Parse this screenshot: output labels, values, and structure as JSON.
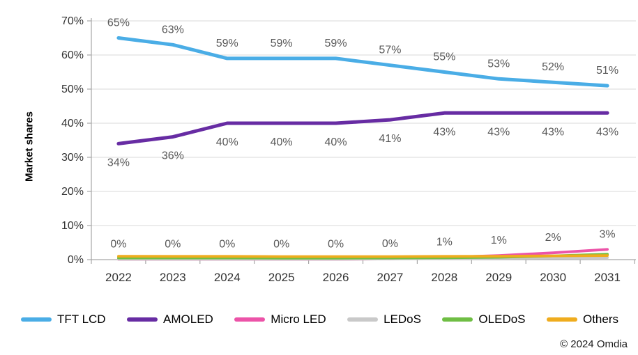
{
  "chart_data": {
    "type": "line",
    "title": "",
    "xlabel": "",
    "ylabel": "Market shares",
    "x": [
      "2022",
      "2023",
      "2024",
      "2025",
      "2026",
      "2027",
      "2028",
      "2029",
      "2030",
      "2031"
    ],
    "ylim": [
      0,
      70
    ],
    "ytick_values": [
      0,
      10,
      20,
      30,
      40,
      50,
      60,
      70
    ],
    "ytick_labels": [
      "0%",
      "10%",
      "20%",
      "30%",
      "40%",
      "50%",
      "60%",
      "70%"
    ],
    "grid": "horizontal",
    "legend_position": "bottom",
    "series": [
      {
        "name": "TFT LCD",
        "color": "#4AADE6",
        "values": [
          65,
          63,
          59,
          59,
          59,
          57,
          55,
          53,
          52,
          51
        ],
        "labels": [
          "65%",
          "63%",
          "59%",
          "59%",
          "59%",
          "57%",
          "55%",
          "53%",
          "52%",
          "51%"
        ],
        "label_side": "above"
      },
      {
        "name": "AMOLED",
        "color": "#672CA3",
        "values": [
          34,
          36,
          40,
          40,
          40,
          41,
          43,
          43,
          43,
          43
        ],
        "labels": [
          "34%",
          "36%",
          "40%",
          "40%",
          "40%",
          "41%",
          "43%",
          "43%",
          "43%",
          "43%"
        ],
        "label_side": "below"
      },
      {
        "name": "Micro LED",
        "color": "#EC53A8",
        "values": [
          0.1,
          0.1,
          0.1,
          0.1,
          0.1,
          0.2,
          0.7,
          1.2,
          2,
          3
        ],
        "labels": [
          "0%",
          "0%",
          "0%",
          "0%",
          "0%",
          "0%",
          "1%",
          "1%",
          "2%",
          "3%"
        ],
        "label_side": "above"
      },
      {
        "name": "LEDoS",
        "color": "#C9C9C9",
        "values": [
          0.15,
          0.15,
          0.15,
          0.15,
          0.15,
          0.2,
          0.3,
          0.4,
          0.5,
          0.6
        ]
      },
      {
        "name": "OLEDoS",
        "color": "#6FBE44",
        "values": [
          0.5,
          0.5,
          0.5,
          0.45,
          0.45,
          0.5,
          0.55,
          0.7,
          1.1,
          1.6
        ]
      },
      {
        "name": "Others",
        "color": "#EFAC1E",
        "values": [
          1.0,
          0.95,
          0.95,
          0.9,
          0.9,
          0.9,
          0.95,
          1.0,
          1.1,
          1.2
        ]
      }
    ]
  },
  "footer": {
    "copyright": "© 2024 Omdia"
  }
}
